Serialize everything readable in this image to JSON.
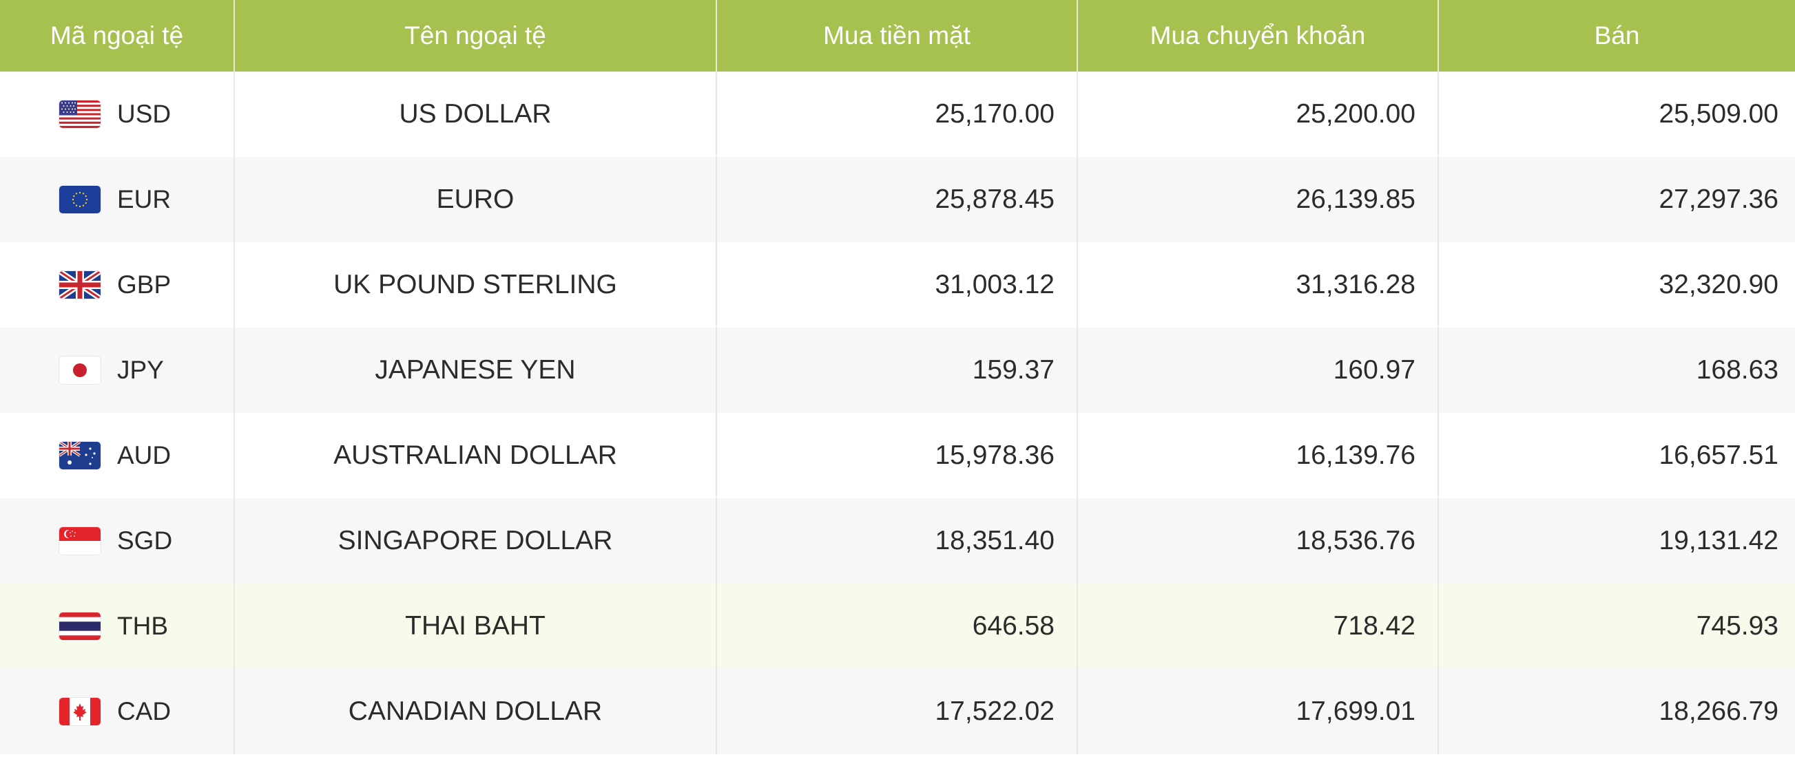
{
  "headers": {
    "code": "Mã ngoại tệ",
    "name": "Tên ngoại tệ",
    "buy_cash": "Mua tiền mặt",
    "buy_transfer": "Mua chuyển khoản",
    "sell": "Bán"
  },
  "colors": {
    "header_bg": "#a6c150",
    "header_text": "#ffffff",
    "row_alt_bg": "#f7f7f7",
    "row_highlight_bg": "#f6fbec"
  },
  "rows": [
    {
      "flag_icon": "us-flag-icon",
      "code": "USD",
      "name": "US DOLLAR",
      "buy_cash": "25,170.00",
      "buy_transfer": "25,200.00",
      "sell": "25,509.00"
    },
    {
      "flag_icon": "eu-flag-icon",
      "code": "EUR",
      "name": "EURO",
      "buy_cash": "25,878.45",
      "buy_transfer": "26,139.85",
      "sell": "27,297.36"
    },
    {
      "flag_icon": "uk-flag-icon",
      "code": "GBP",
      "name": "UK POUND STERLING",
      "buy_cash": "31,003.12",
      "buy_transfer": "31,316.28",
      "sell": "32,320.90"
    },
    {
      "flag_icon": "jp-flag-icon",
      "code": "JPY",
      "name": "JAPANESE YEN",
      "buy_cash": "159.37",
      "buy_transfer": "160.97",
      "sell": "168.63"
    },
    {
      "flag_icon": "au-flag-icon",
      "code": "AUD",
      "name": "AUSTRALIAN DOLLAR",
      "buy_cash": "15,978.36",
      "buy_transfer": "16,139.76",
      "sell": "16,657.51"
    },
    {
      "flag_icon": "sg-flag-icon",
      "code": "SGD",
      "name": "SINGAPORE DOLLAR",
      "buy_cash": "18,351.40",
      "buy_transfer": "18,536.76",
      "sell": "19,131.42"
    },
    {
      "flag_icon": "th-flag-icon",
      "code": "THB",
      "name": "THAI BAHT",
      "buy_cash": "646.58",
      "buy_transfer": "718.42",
      "sell": "745.93"
    },
    {
      "flag_icon": "ca-flag-icon",
      "code": "CAD",
      "name": "CANADIAN DOLLAR",
      "buy_cash": "17,522.02",
      "buy_transfer": "17,699.01",
      "sell": "18,266.79"
    }
  ]
}
